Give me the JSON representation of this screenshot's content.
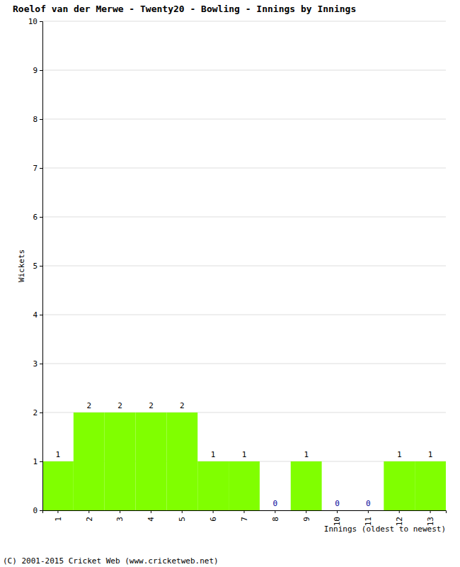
{
  "chart_data": {
    "type": "bar",
    "title": "Roelof van der Merwe - Twenty20 - Bowling - Innings by Innings",
    "x_label": "Innings (oldest to newest)",
    "y_label": "Wickets",
    "annotations": [
      "(C) 2001-2015 Cricket Web (www.cricketweb.net)"
    ],
    "categories": [
      "1",
      "2",
      "3",
      "4",
      "5",
      "6",
      "7",
      "8",
      "9",
      "10",
      "11",
      "12",
      "13"
    ],
    "values": [
      1,
      2,
      2,
      2,
      2,
      1,
      1,
      0,
      1,
      0,
      0,
      1,
      1
    ],
    "color": "#80ff00",
    "ylim": [
      0,
      10
    ],
    "yticks": [
      0,
      1,
      2,
      3,
      4,
      5,
      6,
      7,
      8,
      9,
      10
    ],
    "grid": true,
    "data_labels": true
  }
}
